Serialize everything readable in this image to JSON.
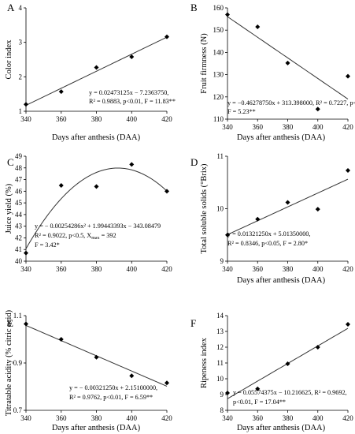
{
  "chart_data": [
    {
      "type": "scatter",
      "panel_label": "A",
      "xlabel": "Days after anthesis (DAA)",
      "ylabel": "Color index",
      "xlim": [
        340,
        420
      ],
      "ylim": [
        1,
        4
      ],
      "xticks": [
        340,
        360,
        380,
        400,
        420
      ],
      "yticks": [
        1,
        2,
        3,
        4
      ],
      "x": [
        340,
        360,
        380,
        400,
        420
      ],
      "y": [
        1.2,
        1.57,
        2.27,
        2.58,
        3.16
      ],
      "fit": {
        "kind": "linear",
        "coef": [
          0.02473125,
          -7.236375
        ]
      },
      "equation_lines": [
        "y = 0.02473125x − 7.2363750,",
        "R² = 0.9883, p<0.01, F = 11.83**"
      ]
    },
    {
      "type": "scatter",
      "panel_label": "B",
      "xlabel": "Days after anthesis (DAA)",
      "ylabel": "Fruit firmness (N)",
      "xlim": [
        340,
        420
      ],
      "ylim": [
        110,
        160
      ],
      "xticks": [
        340,
        360,
        380,
        400,
        420
      ],
      "yticks": [
        110,
        120,
        130,
        140,
        150,
        160
      ],
      "x": [
        340,
        360,
        380,
        400,
        420
      ],
      "y": [
        157,
        151.5,
        135.2,
        114.5,
        129.3
      ],
      "fit": {
        "kind": "linear",
        "coef": [
          -0.4627875,
          313.398
        ]
      },
      "equation_lines": [
        "y = −0.46278750x + 313.398000, R² = 0.7227, p<0.01,",
        "F = 5.23**"
      ]
    },
    {
      "type": "scatter",
      "panel_label": "C",
      "xlabel": "",
      "ylabel": "Juice yield (%)",
      "xlim": [
        340,
        420
      ],
      "ylim": [
        40,
        49
      ],
      "xticks": [
        340,
        360,
        380,
        400,
        420
      ],
      "yticks": [
        40,
        41,
        42,
        43,
        44,
        45,
        46,
        47,
        48,
        49
      ],
      "x": [
        340,
        360,
        380,
        400,
        420
      ],
      "y": [
        40.7,
        46.5,
        46.4,
        48.3,
        46.0
      ],
      "fit": {
        "kind": "quadratic",
        "coef": [
          -0.00254286,
          1.99443393,
          -343.08479
        ]
      },
      "equation_lines": [
        "y = − 0.00254286x² + 1.99443393x − 343.08479",
        "R² = 0.9022, p<0.5, X",
        "max",
        " = 392",
        "F = 3.42*"
      ]
    },
    {
      "type": "scatter",
      "panel_label": "D",
      "xlabel": "Days after anthesis (DAA)",
      "ylabel": "Total soluble solids (°Brix)",
      "xlim": [
        340,
        420
      ],
      "ylim": [
        9,
        11
      ],
      "xticks": [
        340,
        360,
        380,
        400,
        420
      ],
      "yticks": [
        9,
        10,
        11
      ],
      "x": [
        340,
        360,
        380,
        400,
        420
      ],
      "y": [
        9.5,
        9.8,
        10.12,
        9.99,
        10.73
      ],
      "fit": {
        "kind": "linear",
        "coef": [
          0.0132125,
          5.0135
        ]
      },
      "equation_lines": [
        "y = 0.01321250x + 5.01350000,",
        "R² = 0.8346, p<0.05, F = 2.80*"
      ]
    },
    {
      "type": "scatter",
      "panel_label": "E",
      "xlabel": "Days after anthesis (DAA)",
      "ylabel": "Titratable acidity (% citric acid)",
      "xlim": [
        340,
        420
      ],
      "ylim": [
        0.7,
        1.1
      ],
      "xticks": [
        340,
        360,
        380,
        400,
        420
      ],
      "yticks": [
        0.7,
        0.9,
        1.1
      ],
      "ytick_labels": [
        "0.7",
        "0.9",
        "1.1"
      ],
      "x": [
        340,
        360,
        380,
        400,
        420
      ],
      "y": [
        1.065,
        1.0,
        0.924,
        0.846,
        0.816
      ],
      "fit": {
        "kind": "linear",
        "coef": [
          -0.0032125,
          2.151
        ]
      },
      "equation_lines": [
        "y = − 0.00321250x + 2.15100000,",
        "R² = 0.9762, p<0.01, F = 6.59**"
      ]
    },
    {
      "type": "scatter",
      "panel_label": "F",
      "xlabel": "Days after anthesis (DAA)",
      "ylabel": "Ripeness index",
      "xlim": [
        340,
        420
      ],
      "ylim": [
        8,
        14
      ],
      "xticks": [
        340,
        360,
        380,
        400,
        420
      ],
      "yticks": [
        8,
        9,
        10,
        11,
        12,
        13,
        14
      ],
      "x": [
        340,
        360,
        380,
        400,
        420
      ],
      "y": [
        9.1,
        9.36,
        10.95,
        12.0,
        13.45
      ],
      "fit": {
        "kind": "linear",
        "coef": [
          0.05574375,
          -10.216625
        ]
      },
      "equation_lines": [
        "y = 0.05574375x − 10.216625, R² = 0.9692,",
        "p<0.01, F = 17.04**"
      ]
    }
  ]
}
